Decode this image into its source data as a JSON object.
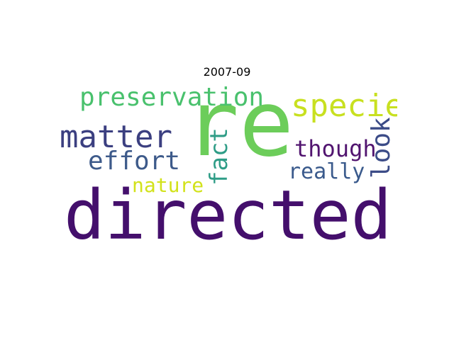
{
  "title": "2007-09",
  "words": [
    {
      "text": "directed",
      "color": "#440f6c"
    },
    {
      "text": "re",
      "color": "#6ccd5a"
    },
    {
      "text": "preservation",
      "color": "#49c16d"
    },
    {
      "text": "specie",
      "color": "#c8e020"
    },
    {
      "text": "matter",
      "color": "#3b3f80"
    },
    {
      "text": "effort",
      "color": "#3d5a8a"
    },
    {
      "text": "nature",
      "color": "#d2e21b"
    },
    {
      "text": "fact",
      "color": "#2f9d87"
    },
    {
      "text": "though",
      "color": "#51146f"
    },
    {
      "text": "really",
      "color": "#3a5a8c"
    },
    {
      "text": "look",
      "color": "#3b4b87"
    }
  ]
}
